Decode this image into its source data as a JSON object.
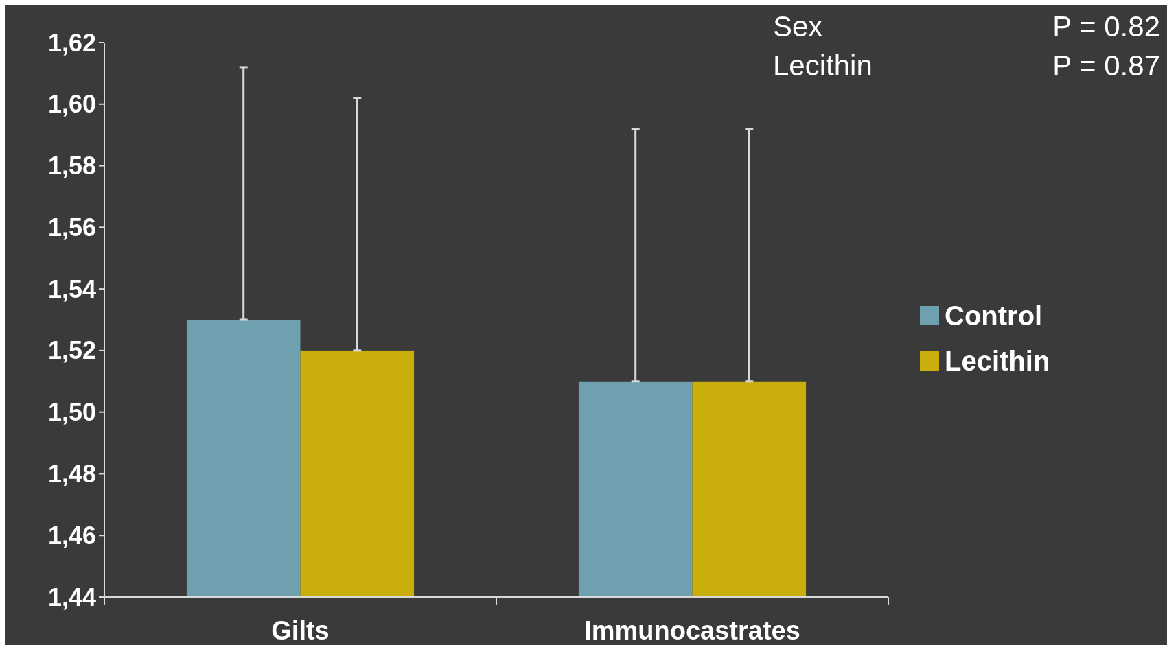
{
  "chart_data": {
    "type": "bar",
    "categories": [
      "Gilts",
      "Immunocastrates"
    ],
    "series": [
      {
        "name": "Control",
        "color": "#6fa0af",
        "values": [
          1.53,
          1.51
        ],
        "errors": [
          [
            1.53,
            1.612
          ],
          [
            1.51,
            1.592
          ]
        ]
      },
      {
        "name": "Lecithin",
        "color": "#c9ae0c",
        "values": [
          1.52,
          1.51
        ],
        "errors": [
          [
            1.52,
            1.602
          ],
          [
            1.51,
            1.592
          ]
        ]
      }
    ],
    "ylim": [
      1.44,
      1.62
    ],
    "yticks": [
      {
        "value": 1.44,
        "label": "1,44"
      },
      {
        "value": 1.46,
        "label": "1,46"
      },
      {
        "value": 1.48,
        "label": "1,48"
      },
      {
        "value": 1.5,
        "label": "1,50"
      },
      {
        "value": 1.52,
        "label": "1,52"
      },
      {
        "value": 1.54,
        "label": "1,54"
      },
      {
        "value": 1.56,
        "label": "1,56"
      },
      {
        "value": 1.58,
        "label": "1,58"
      },
      {
        "value": 1.6,
        "label": "1,60"
      },
      {
        "value": 1.62,
        "label": "1,62"
      }
    ],
    "legend": "right",
    "annotations": [
      "Sex",
      "P = 0.82",
      "Lecithin",
      "P = 0.87"
    ]
  }
}
